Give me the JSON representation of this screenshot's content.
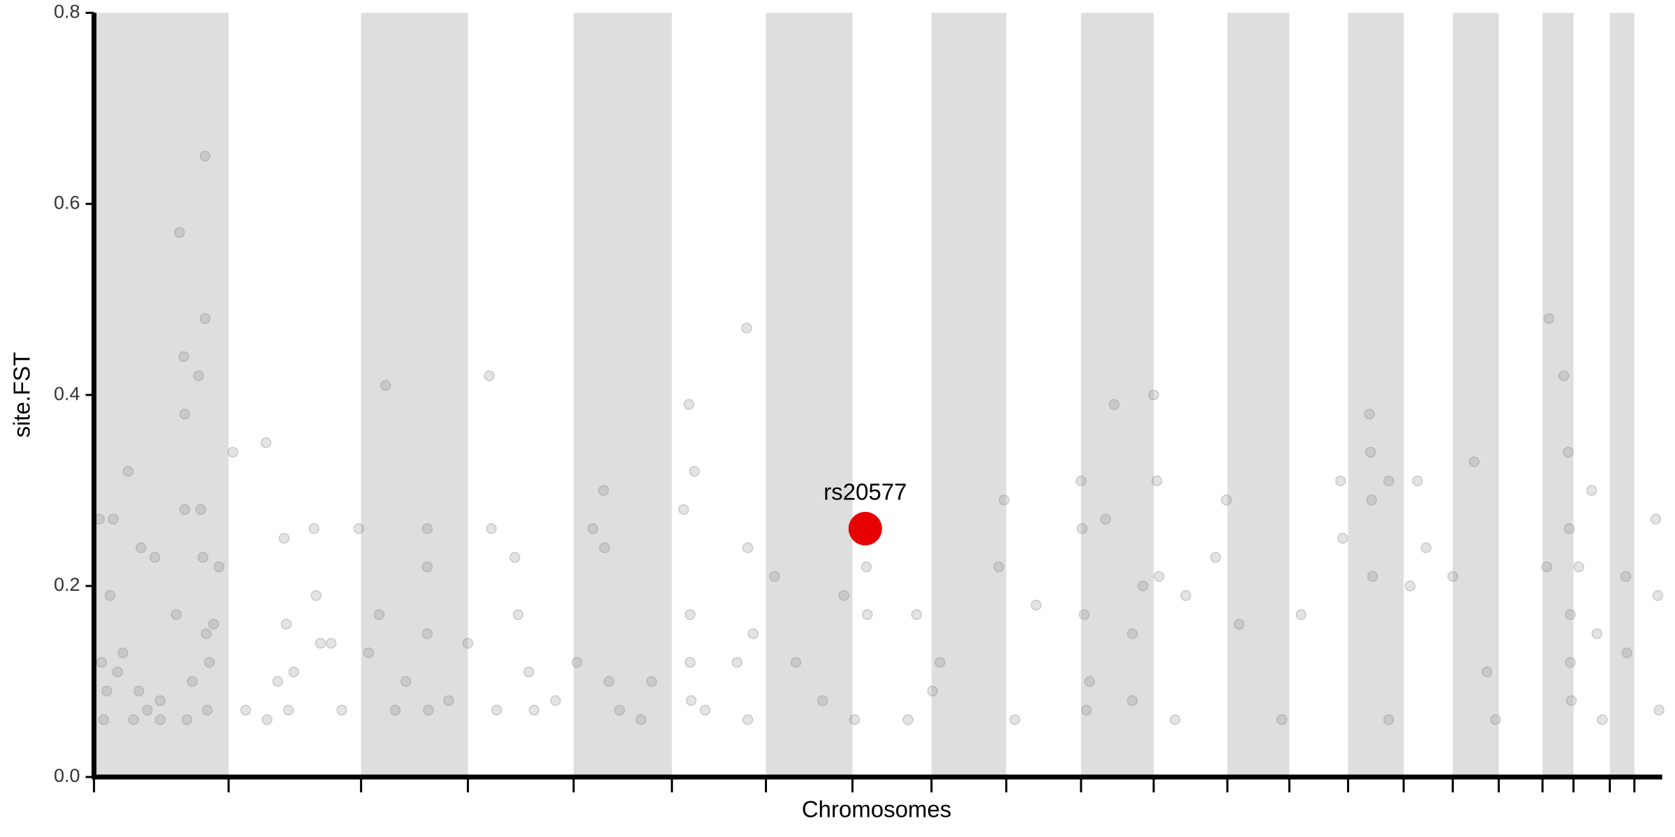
{
  "chart_data": {
    "type": "scatter",
    "x_label": "Chromosomes",
    "y_label": "site.FST",
    "xlim": [
      88,
      1556
    ],
    "ylim": [
      0,
      0.8
    ],
    "xticks": [
      88,
      214,
      338,
      438,
      537,
      629,
      717,
      798,
      872,
      942,
      1012,
      1080,
      1149,
      1207,
      1262,
      1314,
      1360,
      1403,
      1444,
      1473,
      1507,
      1530
    ],
    "yticks": [
      {
        "value": 0,
        "label": "0.0"
      },
      {
        "value": 0.2,
        "label": "0.2"
      },
      {
        "value": 0.4,
        "label": "0.4"
      },
      {
        "value": 0.6,
        "label": "0.6"
      },
      {
        "value": 0.8,
        "label": "0.8"
      }
    ],
    "shade_alternate": true,
    "shade_color": "#dedede",
    "color": "#808080",
    "x": [
      93,
      95,
      97,
      100,
      103,
      106,
      110,
      115,
      120,
      125,
      130,
      132,
      138,
      145,
      150,
      165,
      168,
      172,
      173,
      173,
      175,
      180,
      186,
      188,
      190,
      192,
      192,
      193,
      194,
      196,
      200,
      205,
      218,
      230,
      249,
      260,
      266,
      268,
      270,
      275,
      294,
      296,
      300,
      310,
      320,
      336,
      345,
      355,
      361,
      370,
      380,
      400,
      400,
      400,
      401,
      420,
      438,
      458,
      460,
      465,
      482,
      485,
      495,
      520,
      540,
      555,
      565,
      566,
      570,
      580,
      610,
      640,
      645,
      646,
      647,
      650,
      660,
      690,
      699,
      700,
      705,
      725,
      745,
      770,
      790,
      800,
      811,
      812,
      858,
      873,
      880,
      935,
      940,
      970,
      1012,
      1013,
      1015,
      1017,
      1035,
      1043,
      1060,
      1070,
      1080,
      1083,
      1085,
      1110,
      1138,
      1148,
      1160,
      1218,
      1255,
      1257,
      1282,
      1283,
      1284,
      1285,
      1300,
      1320,
      1327,
      1335,
      1360,
      1380,
      1392,
      1448,
      1450,
      1464,
      1468,
      1469,
      1470,
      1471,
      1478,
      1490,
      1495,
      1522,
      1523,
      1550,
      1552,
      1553,
      150,
      250,
      500,
      600,
      700,
      850,
      950,
      1100,
      1200,
      1300,
      1400,
      1500,
      1020,
      1060,
      646,
      1470
    ],
    "values": [
      0.27,
      0.12,
      0.06,
      0.09,
      0.19,
      0.27,
      0.11,
      0.13,
      0.32,
      0.06,
      0.09,
      0.24,
      0.07,
      0.23,
      0.08,
      0.17,
      0.57,
      0.44,
      0.38,
      0.28,
      0.06,
      0.1,
      0.42,
      0.28,
      0.23,
      0.65,
      0.48,
      0.15,
      0.07,
      0.12,
      0.16,
      0.22,
      0.34,
      0.07,
      0.35,
      0.1,
      0.25,
      0.16,
      0.07,
      0.11,
      0.26,
      0.19,
      0.14,
      0.14,
      0.07,
      0.26,
      0.13,
      0.17,
      0.41,
      0.07,
      0.1,
      0.26,
      0.22,
      0.15,
      0.07,
      0.08,
      0.14,
      0.42,
      0.26,
      0.07,
      0.23,
      0.17,
      0.11,
      0.08,
      0.12,
      0.26,
      0.3,
      0.24,
      0.1,
      0.07,
      0.1,
      0.28,
      0.39,
      0.17,
      0.08,
      0.32,
      0.07,
      0.12,
      0.47,
      0.24,
      0.15,
      0.21,
      0.12,
      0.08,
      0.19,
      0.06,
      0.22,
      0.17,
      0.17,
      0.09,
      0.12,
      0.22,
      0.29,
      0.18,
      0.31,
      0.26,
      0.17,
      0.07,
      0.27,
      0.39,
      0.15,
      0.2,
      0.4,
      0.31,
      0.21,
      0.19,
      0.23,
      0.29,
      0.16,
      0.17,
      0.31,
      0.25,
      0.38,
      0.34,
      0.29,
      0.21,
      0.31,
      0.2,
      0.31,
      0.24,
      0.21,
      0.33,
      0.11,
      0.22,
      0.48,
      0.42,
      0.34,
      0.26,
      0.17,
      0.08,
      0.22,
      0.3,
      0.15,
      0.21,
      0.13,
      0.27,
      0.19,
      0.07,
      0.06,
      0.06,
      0.07,
      0.06,
      0.06,
      0.06,
      0.06,
      0.06,
      0.06,
      0.06,
      0.06,
      0.06,
      0.1,
      0.08,
      0.12,
      0.12
    ],
    "annotations": [
      {
        "text": "rs20577",
        "x": 810,
        "y": 0.26,
        "color": "#e60000"
      }
    ]
  }
}
